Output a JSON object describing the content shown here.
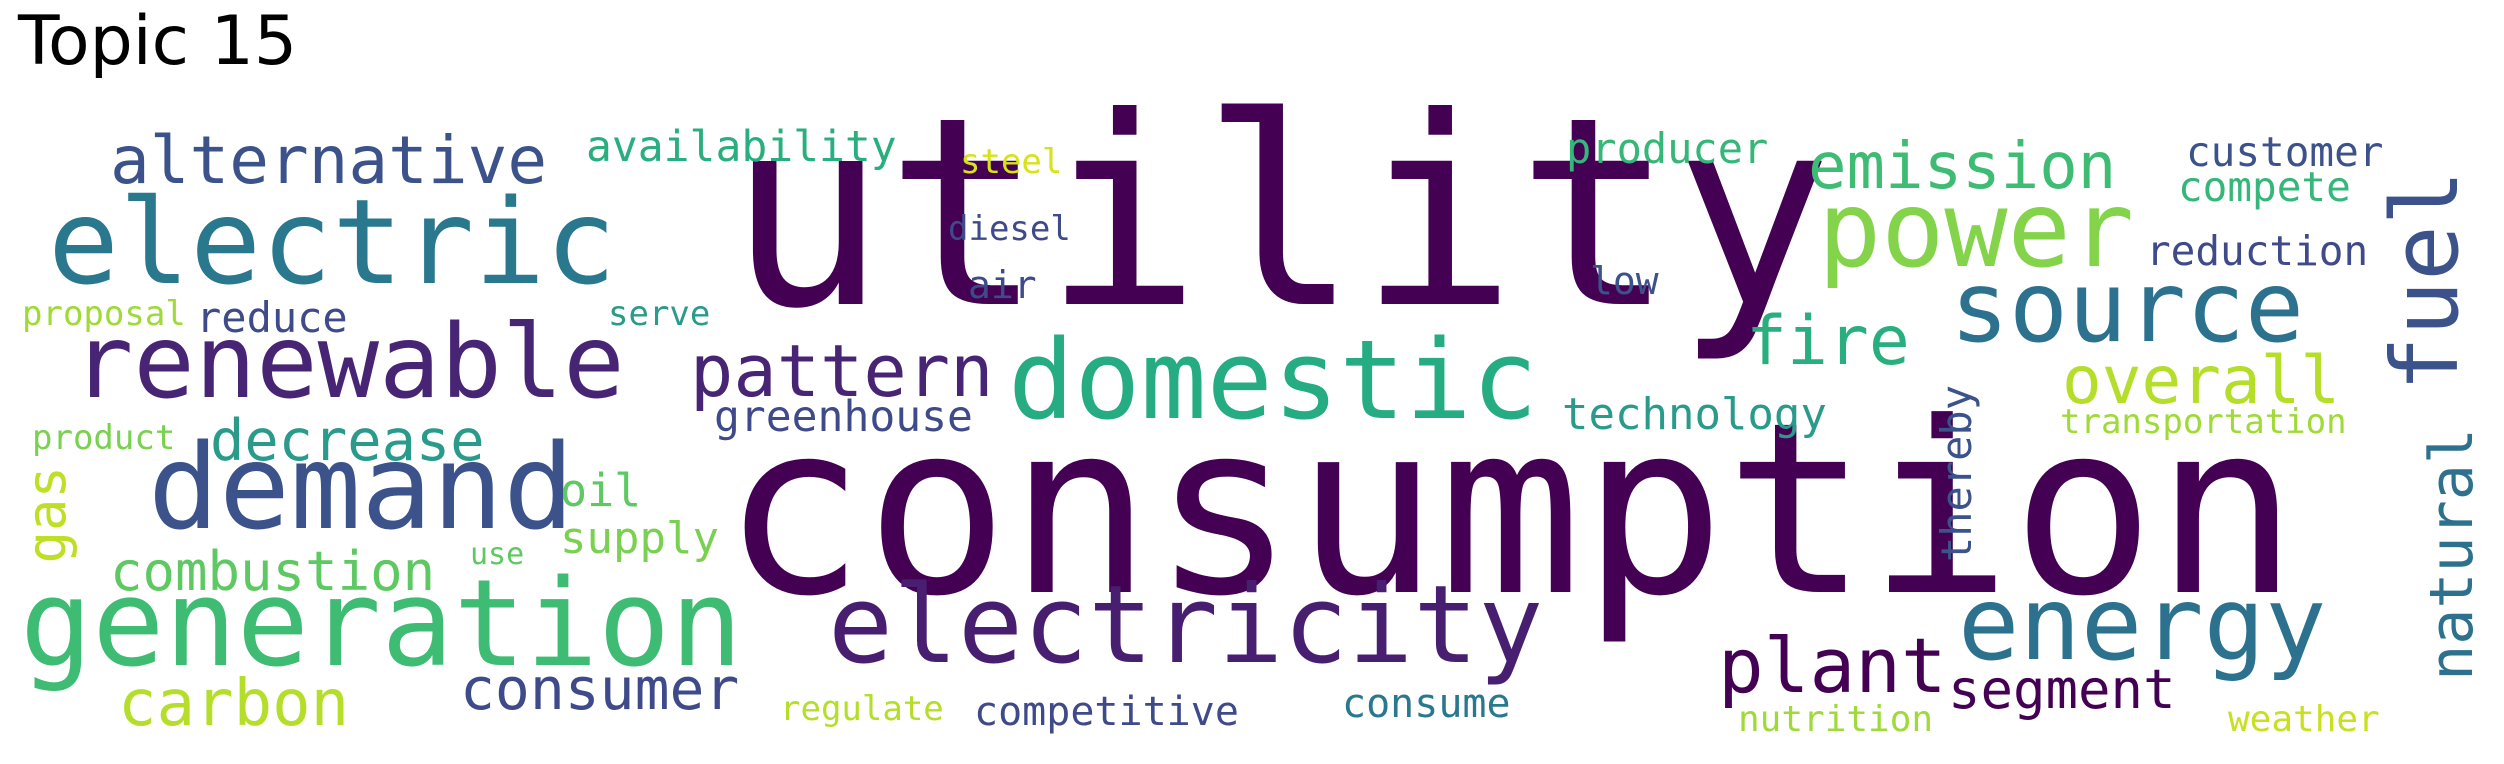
{
  "title": "Topic 15",
  "words": [
    {
      "text": "utility",
      "color": "#440154"
    },
    {
      "text": "consumption",
      "color": "#440154"
    },
    {
      "text": "electric",
      "color": "#2a788e"
    },
    {
      "text": "renewable",
      "color": "#482475"
    },
    {
      "text": "demand",
      "color": "#3b528b"
    },
    {
      "text": "generation",
      "color": "#3fbc73"
    },
    {
      "text": "electricity",
      "color": "#481f70"
    },
    {
      "text": "domestic",
      "color": "#25ac82"
    },
    {
      "text": "power",
      "color": "#84d44b"
    },
    {
      "text": "source",
      "color": "#2c728e"
    },
    {
      "text": "energy",
      "color": "#2c728e"
    },
    {
      "text": "fuel",
      "color": "#3b528b"
    },
    {
      "text": "natural",
      "color": "#2d718e"
    },
    {
      "text": "emission",
      "color": "#3fbc73"
    },
    {
      "text": "alternative",
      "color": "#3b528b"
    },
    {
      "text": "pattern",
      "color": "#482475"
    },
    {
      "text": "fire",
      "color": "#29af7f"
    },
    {
      "text": "overall",
      "color": "#b5de2b"
    },
    {
      "text": "plant",
      "color": "#440154"
    },
    {
      "text": "decrease",
      "color": "#2a9b8a"
    },
    {
      "text": "carbon",
      "color": "#b5de2b"
    },
    {
      "text": "combustion",
      "color": "#5ec962"
    },
    {
      "text": "consumer",
      "color": "#3e4a89"
    },
    {
      "text": "segment",
      "color": "#440154"
    },
    {
      "text": "gas",
      "color": "#bddf26"
    },
    {
      "text": "availability",
      "color": "#29af7f"
    },
    {
      "text": "producer",
      "color": "#35b779"
    },
    {
      "text": "customer",
      "color": "#3b528b"
    },
    {
      "text": "compete",
      "color": "#35b779"
    },
    {
      "text": "reduction",
      "color": "#3e4a89"
    },
    {
      "text": "technology",
      "color": "#2a9b8a"
    },
    {
      "text": "greenhouse",
      "color": "#3e4a89"
    },
    {
      "text": "transportation",
      "color": "#a0da39"
    },
    {
      "text": "thereby",
      "color": "#3b528b"
    },
    {
      "text": "supply",
      "color": "#7ad151"
    },
    {
      "text": "oil",
      "color": "#5ec962"
    },
    {
      "text": "reduce",
      "color": "#3e4a89"
    },
    {
      "text": "proposal",
      "color": "#a0da39"
    },
    {
      "text": "product",
      "color": "#7ad151"
    },
    {
      "text": "serve",
      "color": "#2a9b8a"
    },
    {
      "text": "steel",
      "color": "#d8e219"
    },
    {
      "text": "diesel",
      "color": "#3e4a89"
    },
    {
      "text": "air",
      "color": "#3e4a89"
    },
    {
      "text": "low",
      "color": "#3b528b"
    },
    {
      "text": "use",
      "color": "#5ec962"
    },
    {
      "text": "regulate",
      "color": "#b5de2b"
    },
    {
      "text": "competitive",
      "color": "#3e4a89"
    },
    {
      "text": "consume",
      "color": "#2a788e"
    },
    {
      "text": "nutrition",
      "color": "#9fda3a"
    },
    {
      "text": "weather",
      "color": "#c8e020"
    }
  ]
}
